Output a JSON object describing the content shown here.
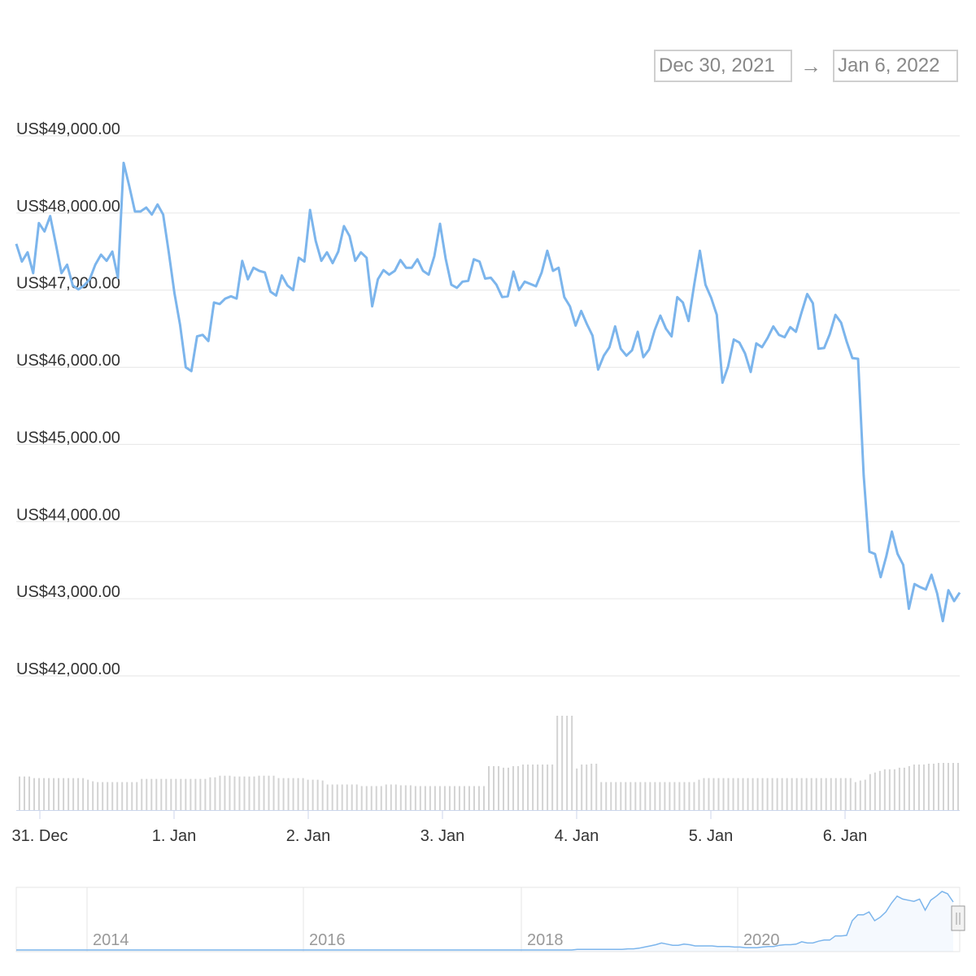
{
  "range_selector": {
    "from": "Dec 30, 2021",
    "arrow": "→",
    "to": "Jan 6, 2022"
  },
  "colors": {
    "line": "#7cb5ec",
    "grid": "#e6e6e6",
    "volume": "#d3d3d3",
    "axis_text": "#333333",
    "navigator_text": "#999999"
  },
  "chart_data": {
    "type": "line",
    "title": "",
    "ylabel": "",
    "xlabel": "",
    "ylim": [
      42000,
      49000
    ],
    "y_ticks": [
      {
        "value": 49000,
        "label": "US$49,000.00"
      },
      {
        "value": 48000,
        "label": "US$48,000.00"
      },
      {
        "value": 47000,
        "label": "US$47,000.00"
      },
      {
        "value": 46000,
        "label": "US$46,000.00"
      },
      {
        "value": 45000,
        "label": "US$45,000.00"
      },
      {
        "value": 44000,
        "label": "US$44,000.00"
      },
      {
        "value": 43000,
        "label": "US$43,000.00"
      },
      {
        "value": 42000,
        "label": "US$42,000.00"
      }
    ],
    "x_ticks": [
      "31. Dec",
      "1. Jan",
      "2. Jan",
      "3. Jan",
      "4. Jan",
      "5. Jan",
      "6. Jan"
    ],
    "price_series": {
      "x_start": "2021-12-30 20:00",
      "interval_hours": 1,
      "values": [
        47600,
        47370,
        47490,
        47220,
        47870,
        47760,
        47960,
        47600,
        47220,
        47330,
        47060,
        47010,
        47060,
        47140,
        47330,
        47460,
        47380,
        47500,
        47160,
        48650,
        48350,
        48020,
        48020,
        48070,
        47980,
        48110,
        47980,
        47490,
        46960,
        46550,
        46000,
        45950,
        46400,
        46420,
        46340,
        46840,
        46820,
        46890,
        46920,
        46890,
        47380,
        47140,
        47290,
        47250,
        47230,
        46980,
        46930,
        47190,
        47060,
        47000,
        47420,
        47370,
        48040,
        47640,
        47380,
        47490,
        47350,
        47500,
        47830,
        47700,
        47380,
        47490,
        47420,
        46790,
        47140,
        47260,
        47200,
        47250,
        47390,
        47290,
        47290,
        47400,
        47250,
        47200,
        47440,
        47860,
        47410,
        47070,
        47030,
        47110,
        47120,
        47400,
        47370,
        47150,
        47160,
        47070,
        46910,
        46920,
        47240,
        47000,
        47110,
        47080,
        47050,
        47230,
        47510,
        47250,
        47290,
        46910,
        46790,
        46540,
        46730,
        46560,
        46410,
        45970,
        46150,
        46260,
        46530,
        46240,
        46150,
        46220,
        46460,
        46130,
        46230,
        46480,
        46670,
        46500,
        46400,
        46910,
        46840,
        46600,
        47070,
        47510,
        47070,
        46900,
        46680,
        45800,
        46010,
        46360,
        46320,
        46180,
        45940,
        46310,
        46260,
        46380,
        46530,
        46420,
        46390,
        46520,
        46460,
        46710,
        46950,
        46830,
        46240,
        46250,
        46430,
        46680,
        46580,
        46330,
        46120,
        46110,
        44600,
        43610,
        43580,
        43280,
        43550,
        43870,
        43580,
        43440,
        42870,
        43190,
        43150,
        43120,
        43310,
        43070,
        42710,
        43110,
        42970,
        43080
      ]
    },
    "volume_series": {
      "values": [
        42,
        42,
        42,
        40,
        40,
        40,
        40,
        40,
        40,
        40,
        40,
        40,
        40,
        40,
        38,
        36,
        35,
        35,
        35,
        35,
        35,
        35,
        35,
        35,
        35,
        39,
        39,
        39,
        39,
        39,
        39,
        39,
        39,
        39,
        39,
        39,
        39,
        39,
        39,
        41,
        41,
        43,
        43,
        43,
        42,
        42,
        42,
        42,
        42,
        43,
        43,
        43,
        43,
        40,
        40,
        40,
        40,
        40,
        40,
        38,
        38,
        38,
        37,
        32,
        32,
        32,
        32,
        32,
        32,
        32,
        30,
        30,
        30,
        30,
        30,
        32,
        32,
        32,
        31,
        31,
        31,
        30,
        30,
        30,
        30,
        30,
        30,
        30,
        30,
        30,
        30,
        30,
        30,
        30,
        30,
        30,
        55,
        55,
        55,
        53,
        53,
        55,
        55,
        57,
        57,
        57,
        57,
        57,
        57,
        57,
        118,
        118,
        118,
        118,
        52,
        57,
        57,
        58,
        58,
        35,
        35,
        35,
        35,
        35,
        35,
        35,
        35,
        35,
        35,
        35,
        35,
        35,
        35,
        35,
        35,
        35,
        35,
        35,
        35,
        38,
        40,
        40,
        40,
        40,
        40,
        40,
        40,
        40,
        40,
        40,
        40,
        40,
        40,
        40,
        40,
        40,
        40,
        40,
        40,
        40,
        40,
        40,
        40,
        40,
        40,
        40,
        40,
        40,
        40,
        40,
        40,
        35,
        37,
        38,
        45,
        47,
        49,
        51,
        51,
        51,
        53,
        53,
        55,
        57,
        57,
        57,
        58,
        58,
        59,
        59,
        59,
        59,
        59
      ]
    },
    "navigator": {
      "year_labels": [
        "2014",
        "2016",
        "2018",
        "2020"
      ],
      "series": [
        0,
        0,
        0,
        0,
        0,
        0,
        0,
        0,
        0,
        0,
        0,
        0,
        0,
        0,
        0,
        0,
        0,
        0,
        0,
        0,
        0,
        0,
        0,
        0,
        0,
        0,
        0,
        0,
        0,
        0,
        0,
        0,
        0,
        0,
        0,
        0,
        0,
        0,
        0,
        0,
        0,
        0,
        0,
        0,
        0,
        0,
        0,
        0,
        0,
        0,
        0,
        0,
        0,
        0,
        0,
        0,
        0,
        0,
        0,
        0,
        0,
        0,
        0,
        0,
        0,
        0,
        0,
        0,
        0,
        0,
        0,
        0,
        0,
        0,
        0,
        0,
        0,
        0,
        0,
        0,
        0,
        0,
        0,
        0,
        0,
        0,
        0,
        0,
        0,
        0,
        0,
        0,
        0,
        0,
        0,
        0,
        0,
        0,
        0,
        0,
        1,
        1,
        1,
        1,
        1,
        1,
        1,
        1,
        1,
        2,
        2,
        3,
        5,
        7,
        9,
        12,
        10,
        8,
        8,
        10,
        9,
        7,
        7,
        7,
        7,
        6,
        6,
        6,
        5,
        5,
        4,
        4,
        4,
        5,
        6,
        6,
        8,
        9,
        9,
        10,
        14,
        12,
        12,
        15,
        17,
        17,
        24,
        24,
        25,
        50,
        60,
        60,
        65,
        50,
        56,
        65,
        80,
        92,
        87,
        85,
        83,
        87,
        68,
        85,
        92,
        100,
        96,
        82
      ]
    }
  }
}
